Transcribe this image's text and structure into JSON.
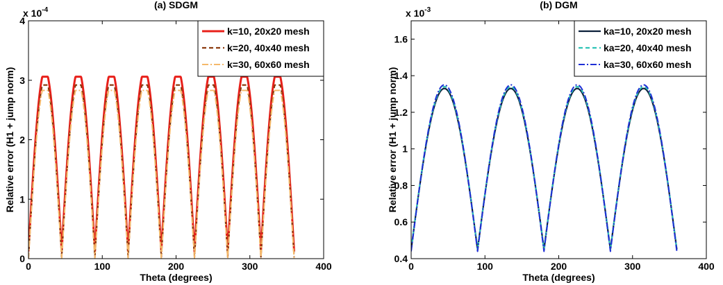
{
  "chart_data": [
    {
      "type": "line",
      "title": "(a) SDGM",
      "xlabel": "Theta (degrees)",
      "ylabel": "Relative error (H1 + jump norm)",
      "exponent_base": "x 10",
      "exponent_power": "-4",
      "xlim": [
        0,
        400
      ],
      "ylim": [
        0,
        4
      ],
      "xticks": [
        0,
        100,
        200,
        300,
        400
      ],
      "yticks": [
        0,
        1,
        2,
        3,
        4
      ],
      "grid": false,
      "legend_position": "top-right",
      "pattern": {
        "kind": "abs_sin",
        "period": 45,
        "peak_offset": 22.5,
        "clip": true
      },
      "series": [
        {
          "name": "k=10, 20x20 mesh",
          "color": "#e8201a",
          "dash": "solid",
          "width": 3,
          "peak": 3.06,
          "trough": 0.12
        },
        {
          "name": "k=20, 40x40 mesh",
          "color": "#8b3a0f",
          "dash": "dashed",
          "width": 2.2,
          "peak": 2.92,
          "trough": 0.03
        },
        {
          "name": "k=30, 60x60 mesh",
          "color": "#f5b86a",
          "dash": "dashdot",
          "width": 2,
          "peak": 2.83,
          "trough": 0.0
        }
      ]
    },
    {
      "type": "line",
      "title": "(b) DGM",
      "xlabel": "Theta (degrees)",
      "ylabel": "Relative error (H1 + jump norm)",
      "exponent_base": "x 10",
      "exponent_power": "-3",
      "xlim": [
        0,
        400
      ],
      "ylim": [
        0.4,
        1.7
      ],
      "xticks": [
        0,
        100,
        200,
        300,
        400
      ],
      "yticks": [
        0.4,
        0.6,
        0.8,
        1,
        1.2,
        1.4,
        1.6
      ],
      "grid": false,
      "legend_position": "top-right",
      "pattern": {
        "kind": "abs_sin",
        "period": 90,
        "peak_offset": 45,
        "clip": false
      },
      "series": [
        {
          "name": "ka=10, 20x20 mesh",
          "color": "#0b1f3a",
          "dash": "solid",
          "width": 2.2,
          "peak": 1.33,
          "trough": 0.45
        },
        {
          "name": "ka=20, 40x40 mesh",
          "color": "#2ec4b6",
          "dash": "dashed",
          "width": 2.2,
          "peak": 1.34,
          "trough": 0.45
        },
        {
          "name": "ka=30, 60x60 mesh",
          "color": "#1f2fd6",
          "dash": "dashdot",
          "width": 2,
          "peak": 1.35,
          "trough": 0.44
        }
      ]
    }
  ]
}
